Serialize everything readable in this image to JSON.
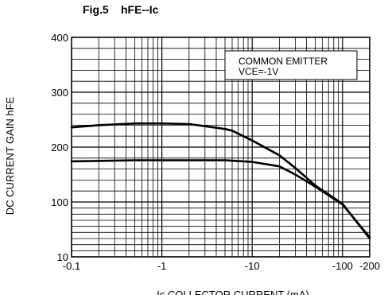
{
  "chart_data": {
    "type": "line",
    "title_fig": "Fig.5",
    "title_params": "hFE--Ic",
    "ylabel": "DC CURRENT GAIN hFE",
    "xlabel": "Ic  COLLECTOR CURRENT (mA)",
    "annotation_line1": "COMMON EMITTER",
    "annotation_line2": "VCE=-1V",
    "x_scale": "log",
    "xlim": [
      -0.1,
      -200
    ],
    "ylim": [
      10,
      400
    ],
    "grid": true,
    "x_ticks": [
      {
        "value": -0.1,
        "label": "-0.1"
      },
      {
        "value": -1,
        "label": "-1"
      },
      {
        "value": -10,
        "label": "-10"
      },
      {
        "value": -100,
        "label": "-100"
      },
      {
        "value": -200,
        "label": "-200"
      }
    ],
    "y_ticks": [
      {
        "value": 10,
        "label": "10"
      },
      {
        "value": 100,
        "label": "100"
      },
      {
        "value": 200,
        "label": "200"
      },
      {
        "value": 300,
        "label": "300"
      },
      {
        "value": 400,
        "label": "400"
      }
    ],
    "series": [
      {
        "x": [
          -0.1,
          -0.2,
          -0.5,
          -1,
          -2,
          -5,
          -6,
          -10,
          -20,
          -30,
          -50,
          -100,
          -200
        ],
        "y": [
          236,
          240,
          243,
          243,
          242,
          233,
          230,
          212,
          185,
          162,
          130,
          97,
          40
        ]
      },
      {
        "x": [
          -0.1,
          -0.5,
          -1,
          -2,
          -5,
          -10,
          -20,
          -30,
          -50,
          -100,
          -200
        ],
        "y": [
          174,
          176,
          176,
          176,
          176,
          173,
          165,
          150,
          128,
          96,
          42
        ]
      }
    ]
  }
}
